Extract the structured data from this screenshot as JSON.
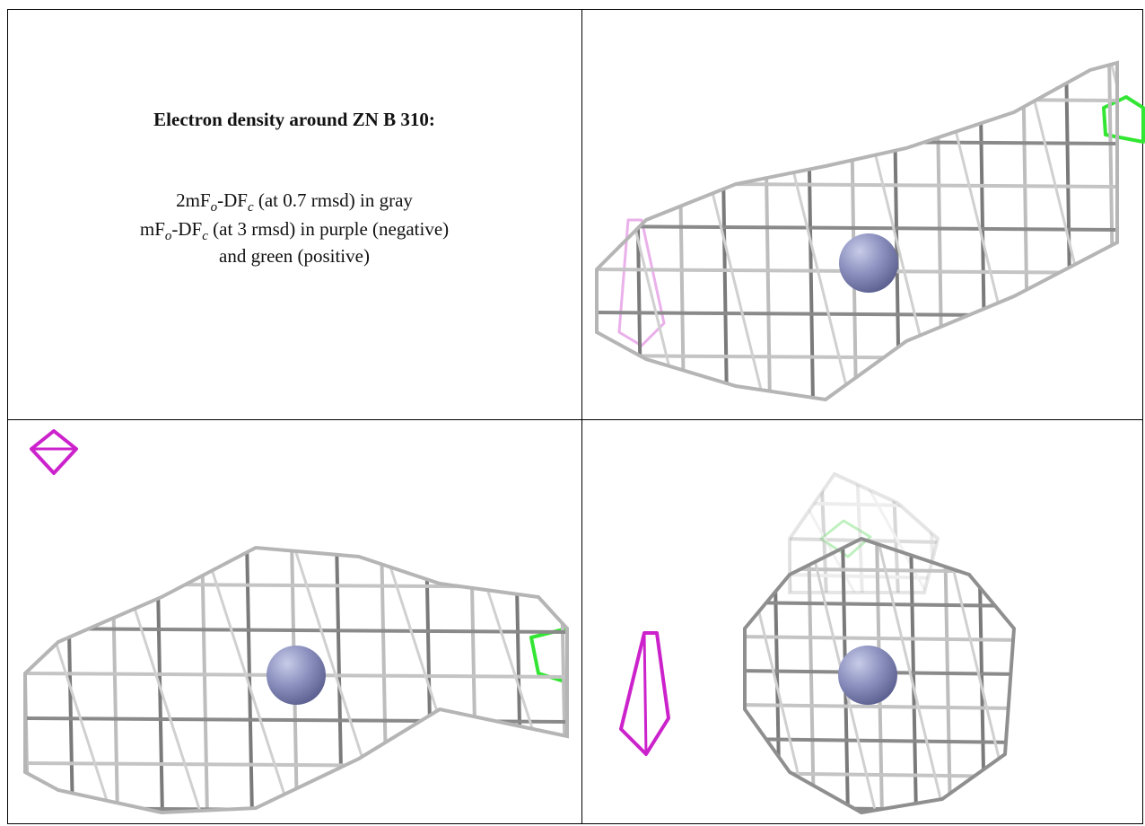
{
  "caption": {
    "title": "Electron density around ZN B 310:",
    "lines": [
      [
        "2mF",
        "o",
        "-DF",
        "c",
        " (at 0.7 rmsd) in gray"
      ],
      [
        "mF",
        "o",
        "-DF",
        "c",
        " (at 3 rmsd) in purple (negative)"
      ],
      [
        "and green (positive)"
      ]
    ]
  }
}
